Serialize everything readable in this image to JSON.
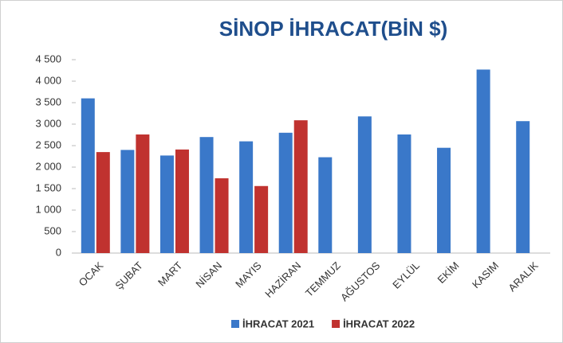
{
  "chart_data": {
    "type": "bar",
    "title": "SİNOP İHRACAT(BİN $)",
    "categories": [
      "OCAK",
      "ŞUBAT",
      "MART",
      "NİSAN",
      "MAYIS",
      "HAZİRAN",
      "TEMMUZ",
      "AĞUSTOS",
      "EYLÜL",
      "EKİM",
      "KASIM",
      "ARALIK"
    ],
    "series": [
      {
        "name": "İHRACAT 2021",
        "color": "#3a78c9",
        "values": [
          3600,
          2400,
          2270,
          2700,
          2600,
          2800,
          2230,
          3180,
          2760,
          2450,
          4270,
          3070
        ]
      },
      {
        "name": "İHRACAT 2022",
        "color": "#c0322f",
        "values": [
          2350,
          2760,
          2410,
          1740,
          1560,
          3090,
          null,
          null,
          null,
          null,
          null,
          null
        ]
      }
    ],
    "ylim": [
      0,
      4500
    ],
    "yticks": [
      0,
      500,
      {
        "value": 1000,
        "label": "1 000"
      },
      {
        "value": 1500,
        "label": "1 500"
      },
      {
        "value": 2000,
        "label": "2 000"
      },
      {
        "value": 2500,
        "label": "2 500"
      },
      {
        "value": 3000,
        "label": "3 000"
      },
      {
        "value": 3500,
        "label": "3 500"
      },
      {
        "value": 4000,
        "label": "4 000"
      },
      {
        "value": 4500,
        "label": "4 500"
      }
    ],
    "grid": false,
    "legend": "bottom"
  }
}
